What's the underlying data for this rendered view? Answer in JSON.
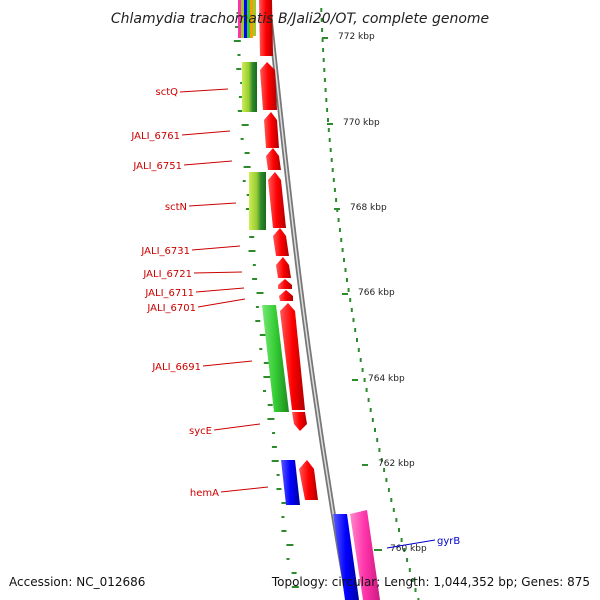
{
  "title": "Chlamydia trachomatis B/Jali20/OT, complete genome",
  "footer": {
    "accession": "Accession: NC_012686",
    "summary": "Topology: circular; Length: 1,044,352 bp; Genes: 875"
  },
  "ticks": [
    "772 kbp",
    "770 kbp",
    "768 kbp",
    "766 kbp",
    "764 kbp",
    "762 kbp",
    "760 kbp"
  ],
  "gene_labels": [
    "sctQ",
    "JALI_6761",
    "JALI_6751",
    "sctN",
    "JALI_6731",
    "JALI_6721",
    "JALI_6711",
    "JALI_6701",
    "JALI_6691",
    "sycE",
    "hemA",
    "gyrB"
  ],
  "colors": {
    "cds": "#ff0000",
    "green": "#33cc33",
    "lime": "#99cc33",
    "blue": "#0000ff",
    "pink": "#ff33aa",
    "backbone": "#888888",
    "gc_dash": "#2d8a2d",
    "label_red": "#cc0000",
    "label_blue": "#0000cc"
  }
}
